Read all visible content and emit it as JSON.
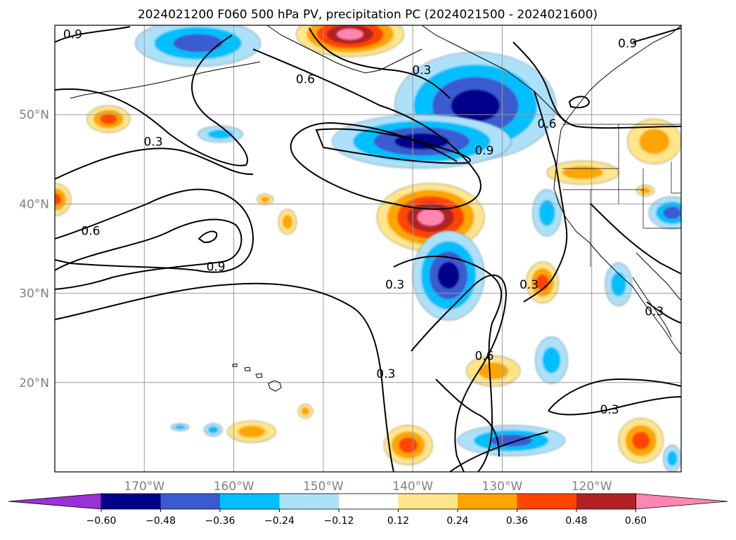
{
  "chart_data": {
    "type": "heatmap",
    "title": "2024021200 F060 500 hPa PV, precipitation PC (2024021500 - 2024021600)",
    "map": {
      "lon_range": [
        -180,
        -110
      ],
      "lat_range": [
        10,
        60
      ],
      "lon_ticks": [
        {
          "lon": -170,
          "label": "170°W"
        },
        {
          "lon": -160,
          "label": "160°W"
        },
        {
          "lon": -150,
          "label": "150°W"
        },
        {
          "lon": -140,
          "label": "140°W"
        },
        {
          "lon": -130,
          "label": "130°W"
        },
        {
          "lon": -120,
          "label": "120°W"
        }
      ],
      "lat_ticks": [
        {
          "lat": 20,
          "label": "20°N"
        },
        {
          "lat": 30,
          "label": "30°N"
        },
        {
          "lat": 40,
          "label": "40°N"
        },
        {
          "lat": 50,
          "label": "50°N"
        }
      ],
      "grid": true
    },
    "colorbar": {
      "orientation": "horizontal",
      "extend": "both",
      "levels": [
        -0.6,
        -0.48,
        -0.36,
        -0.24,
        -0.12,
        0.12,
        0.24,
        0.36,
        0.48,
        0.6
      ],
      "tick_labels": [
        "−0.60",
        "−0.48",
        "−0.36",
        "−0.24",
        "−0.12",
        "0.12",
        "0.24",
        "0.36",
        "0.48",
        "0.60"
      ],
      "colors": [
        "#9b30d8",
        "#00008b",
        "#3a5bd0",
        "#00bfff",
        "#ade1fa",
        "#ffffff",
        "#ffe68a",
        "#ffa500",
        "#ff4500",
        "#b22222",
        "#ff86b0"
      ]
    },
    "pv_contour_levels": [
      0.3,
      0.6,
      0.9
    ],
    "pv_contour_labels": [
      {
        "lon": -178,
        "lat": 59,
        "value": "0.9"
      },
      {
        "lon": -152,
        "lat": 54,
        "value": "0.6"
      },
      {
        "lon": -139,
        "lat": 55,
        "value": "0.3"
      },
      {
        "lon": -169,
        "lat": 47,
        "value": "0.3"
      },
      {
        "lon": -132,
        "lat": 46,
        "value": "0.9"
      },
      {
        "lon": -176,
        "lat": 37,
        "value": "0.6"
      },
      {
        "lon": -162,
        "lat": 33,
        "value": "0.9"
      },
      {
        "lon": -142,
        "lat": 31,
        "value": "0.3"
      },
      {
        "lon": -127,
        "lat": 31,
        "value": "0.3"
      },
      {
        "lon": -125,
        "lat": 49,
        "value": "0.6"
      },
      {
        "lon": -132,
        "lat": 23,
        "value": "0.6"
      },
      {
        "lon": -143,
        "lat": 21,
        "value": "0.3"
      },
      {
        "lon": -118,
        "lat": 17,
        "value": "0.3"
      },
      {
        "lon": -116,
        "lat": 58,
        "value": "0.9"
      },
      {
        "lon": -113,
        "lat": 28,
        "value": "0.3"
      }
    ],
    "precip_pc_anomalies": [
      {
        "lon": -164,
        "lat": 58,
        "rx": 7,
        "ry": 2.6,
        "value": -0.4
      },
      {
        "lon": -147,
        "lat": 59,
        "rx": 6,
        "ry": 2.5,
        "value": 0.62
      },
      {
        "lon": -133,
        "lat": 51,
        "rx": 9,
        "ry": 6,
        "value": -0.5
      },
      {
        "lon": -139,
        "lat": 47,
        "rx": 10,
        "ry": 3,
        "value": -0.55
      },
      {
        "lon": -138,
        "lat": 38.5,
        "rx": 6,
        "ry": 3.8,
        "value": 0.65
      },
      {
        "lon": -136,
        "lat": 32,
        "rx": 4,
        "ry": 5,
        "value": -0.52
      },
      {
        "lon": -174,
        "lat": 49.5,
        "rx": 2.4,
        "ry": 1.5,
        "value": 0.4
      },
      {
        "lon": -161.5,
        "lat": 47.8,
        "rx": 2.5,
        "ry": 0.9,
        "value": -0.3
      },
      {
        "lon": -180,
        "lat": 40.5,
        "rx": 1.8,
        "ry": 1.8,
        "value": 0.4
      },
      {
        "lon": -154,
        "lat": 38,
        "rx": 1,
        "ry": 1.4,
        "value": 0.3
      },
      {
        "lon": -156.5,
        "lat": 40.5,
        "rx": 0.9,
        "ry": 0.6,
        "value": 0.25
      },
      {
        "lon": -125.5,
        "lat": 31.2,
        "rx": 1.8,
        "ry": 2.3,
        "value": 0.42
      },
      {
        "lon": -125,
        "lat": 39,
        "rx": 1.6,
        "ry": 2.6,
        "value": -0.33
      },
      {
        "lon": -117,
        "lat": 31,
        "rx": 1.5,
        "ry": 2.4,
        "value": -0.27
      },
      {
        "lon": -121,
        "lat": 43.5,
        "rx": 4,
        "ry": 1.3,
        "value": 0.26
      },
      {
        "lon": -113,
        "lat": 47,
        "rx": 3,
        "ry": 2.5,
        "value": 0.32
      },
      {
        "lon": -111,
        "lat": 39,
        "rx": 2.6,
        "ry": 1.8,
        "value": -0.38
      },
      {
        "lon": -131,
        "lat": 21.3,
        "rx": 3,
        "ry": 1.7,
        "value": 0.35
      },
      {
        "lon": -124.5,
        "lat": 22.5,
        "rx": 1.8,
        "ry": 2.6,
        "value": -0.3
      },
      {
        "lon": -140.5,
        "lat": 13,
        "rx": 2.7,
        "ry": 2.2,
        "value": 0.42
      },
      {
        "lon": -129,
        "lat": 13.5,
        "rx": 6,
        "ry": 1.7,
        "value": -0.4
      },
      {
        "lon": -114.5,
        "lat": 13.5,
        "rx": 2.5,
        "ry": 2.5,
        "value": 0.42
      },
      {
        "lon": -158,
        "lat": 14.5,
        "rx": 2.7,
        "ry": 1.2,
        "value": 0.3
      },
      {
        "lon": -166,
        "lat": 15,
        "rx": 1,
        "ry": 0.4,
        "value": -0.26
      },
      {
        "lon": -162.3,
        "lat": 14.7,
        "rx": 1,
        "ry": 0.7,
        "value": -0.28
      },
      {
        "lon": -152,
        "lat": 16.8,
        "rx": 0.8,
        "ry": 0.8,
        "value": 0.25
      },
      {
        "lon": -111,
        "lat": 11.5,
        "rx": 1,
        "ry": 1.5,
        "value": -0.27
      },
      {
        "lon": -114,
        "lat": 41.5,
        "rx": 1,
        "ry": 0.6,
        "value": 0.32
      }
    ]
  }
}
